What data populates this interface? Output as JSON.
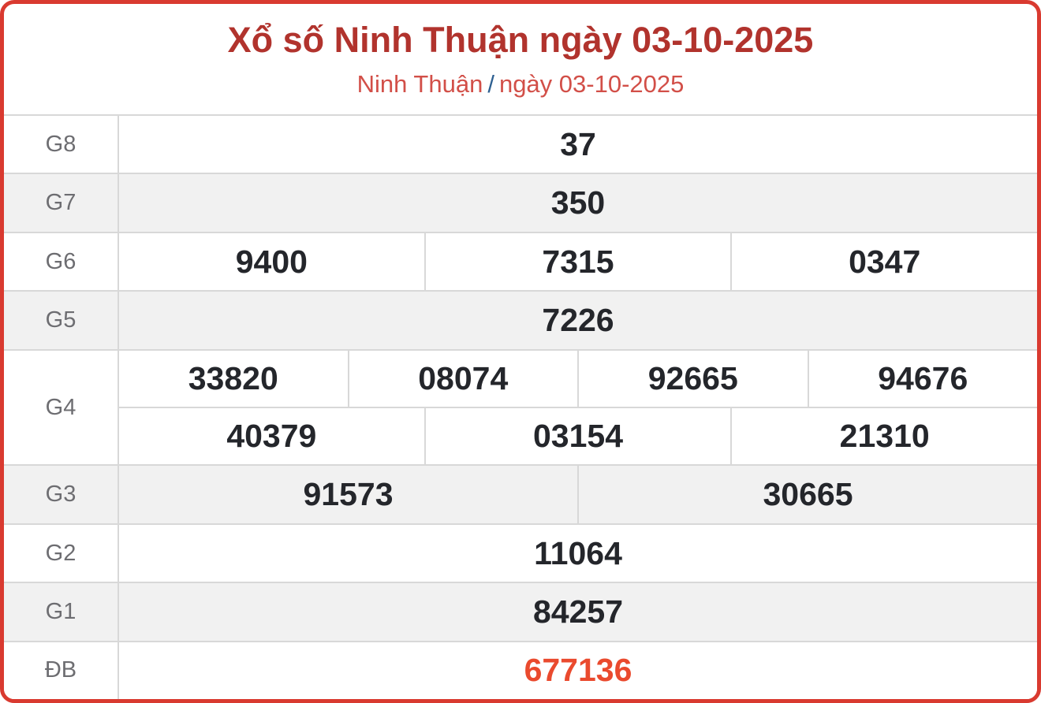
{
  "header": {
    "title": "Xổ số Ninh Thuận ngày 03-10-2025",
    "breadcrumb": {
      "region": "Ninh Thuận",
      "separator": "/",
      "date": "ngày 03-10-2025"
    }
  },
  "colors": {
    "border_red": "#d93a30",
    "title_red": "#b1332d",
    "subtitle_red": "#d24f48",
    "separator_blue": "#2e6091",
    "special_red": "#ea4a2e",
    "label_gray": "#6d6d71",
    "value_dark": "#24262b",
    "shaded_row": "#f1f1f1",
    "divider": "#d8d8d8"
  },
  "results": {
    "rows": [
      {
        "label": "G8",
        "cells": [
          "37"
        ]
      },
      {
        "label": "G7",
        "cells": [
          "350"
        ]
      },
      {
        "label": "G6",
        "cells": [
          "9400",
          "7315",
          "0347"
        ]
      },
      {
        "label": "G5",
        "cells": [
          "7226"
        ]
      },
      {
        "label": "G4",
        "lines": [
          [
            "33820",
            "08074",
            "92665",
            "94676"
          ],
          [
            "40379",
            "03154",
            "21310"
          ]
        ]
      },
      {
        "label": "G3",
        "cells": [
          "91573",
          "30665"
        ]
      },
      {
        "label": "G2",
        "cells": [
          "11064"
        ]
      },
      {
        "label": "G1",
        "cells": [
          "84257"
        ]
      },
      {
        "label": "ĐB",
        "cells": [
          "677136"
        ]
      }
    ]
  }
}
